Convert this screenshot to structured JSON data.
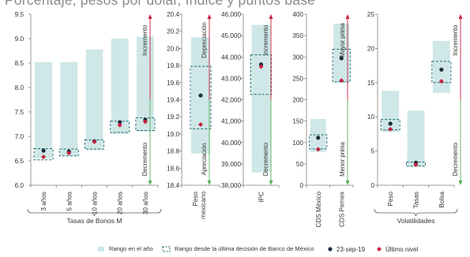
{
  "title": "Porcentaje, pesos por dólar, índice y puntos base",
  "legend": {
    "range_year": "Rango en el año",
    "range_banxico": "Rango desde la última decisión de Banco de México",
    "marker_date": "23-sep-19",
    "marker_last": "Último nivel"
  },
  "colors": {
    "range_fill": "#cfe7e7",
    "box_stroke": "#1f6b72",
    "marker_date": "#1f2d3d",
    "marker_last": "#c8203e",
    "arrow_green": "#57b257",
    "arrow_red": "#c8203e",
    "axis": "#7f7f7f"
  },
  "chart_data": [
    {
      "type": "range",
      "group_label": "Tasas de Bonos M",
      "ylim": [
        6.0,
        9.5
      ],
      "yticks": [
        "6.0",
        "6.5",
        "7.0",
        "7.5",
        "8.0",
        "8.5",
        "9.0",
        "9.5"
      ],
      "arrows": {
        "up": "Incremento",
        "down": "Decremento"
      },
      "categories": [
        "3 años",
        "5 años",
        "10 años",
        "20 años",
        "30 años"
      ],
      "range_year": [
        [
          6.55,
          8.52
        ],
        [
          6.6,
          8.52
        ],
        [
          6.72,
          8.78
        ],
        [
          7.05,
          9.0
        ],
        [
          7.1,
          9.04
        ]
      ],
      "range_banxico": [
        [
          6.52,
          6.75
        ],
        [
          6.6,
          6.74
        ],
        [
          6.74,
          6.93
        ],
        [
          7.08,
          7.31
        ],
        [
          7.12,
          7.38
        ]
      ],
      "date_value": [
        6.71,
        6.69,
        6.9,
        7.29,
        7.34
      ],
      "last_value": [
        6.58,
        6.66,
        6.89,
        7.23,
        7.3
      ]
    },
    {
      "type": "range",
      "ylim": [
        18.4,
        20.4
      ],
      "yticks": [
        "18.4",
        "18.6",
        "18.8",
        "19.0",
        "19.2",
        "19.4",
        "19.6",
        "19.8",
        "20.0",
        "20.2",
        "20.4"
      ],
      "arrows": {
        "up": "Depreciación",
        "down": "Apreciación"
      },
      "categories": [
        "Peso mexicano"
      ],
      "range_year": [
        [
          18.77,
          20.13
        ]
      ],
      "range_banxico": [
        [
          19.06,
          19.79
        ]
      ],
      "date_value": [
        19.45
      ],
      "last_value": [
        19.11
      ]
    },
    {
      "type": "range",
      "ylim": [
        38000,
        46000
      ],
      "yticks": [
        "38,000",
        "39,000",
        "40,000",
        "41,000",
        "42,000",
        "43,000",
        "44,000",
        "45,000",
        "46,000"
      ],
      "arrows": {
        "up": "Incremento",
        "down": "Decremento"
      },
      "categories": [
        "IPC"
      ],
      "range_year": [
        [
          38600,
          45500
        ]
      ],
      "range_banxico": [
        [
          42250,
          44100
        ]
      ],
      "date_value": [
        43650
      ],
      "last_value": [
        43550
      ]
    },
    {
      "type": "range",
      "ylim": [
        0,
        400
      ],
      "yticks": [
        "0",
        "50",
        "100",
        "150",
        "200",
        "250",
        "300",
        "350",
        "400"
      ],
      "arrows": {
        "up": "Mayor prima",
        "down": "Menor prima"
      },
      "categories": [
        "CDS México",
        "CDS Pemex"
      ],
      "range_year": [
        [
          78,
          155
        ],
        [
          240,
          378
        ]
      ],
      "range_banxico": [
        [
          85,
          118
        ],
        [
          242,
          318
        ]
      ],
      "date_value": [
        111,
        297
      ],
      "last_value": [
        84,
        245
      ]
    },
    {
      "type": "range",
      "group_label": "Volatilidades",
      "ylim": [
        0,
        25
      ],
      "yticks": [
        "0",
        "5",
        "10",
        "15",
        "20",
        "25"
      ],
      "arrows": {
        "up": "Incremento",
        "down": "Decremento"
      },
      "categories": [
        "Peso",
        "Tasas",
        "Bolsa"
      ],
      "range_year": [
        [
          7.8,
          13.8
        ],
        [
          2.7,
          10.9
        ],
        [
          13.5,
          21.1
        ]
      ],
      "range_banxico": [
        [
          8.1,
          9.6
        ],
        [
          2.8,
          3.4
        ],
        [
          15.0,
          18.1
        ]
      ],
      "date_value": [
        9.0,
        3.3,
        16.9
      ],
      "last_value": [
        8.2,
        3.0,
        15.2
      ]
    }
  ]
}
